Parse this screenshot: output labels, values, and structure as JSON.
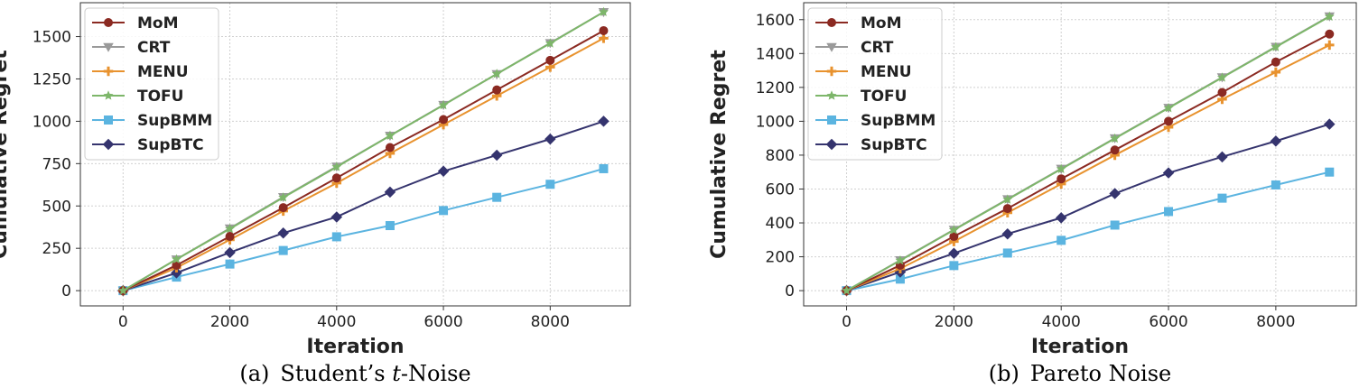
{
  "chart_data": [
    {
      "type": "line",
      "caption": {
        "prefix": "(a) Student’s ",
        "italic": "t",
        "suffix": "-Noise"
      },
      "xlabel": "Iteration",
      "ylabel": "Cumulative Regret",
      "xlim": [
        -800,
        9500
      ],
      "ylim": [
        -90,
        1700
      ],
      "xticks": [
        0,
        2000,
        4000,
        6000,
        8000
      ],
      "yticks": [
        0,
        250,
        500,
        750,
        1000,
        1250,
        1500
      ],
      "grid": true,
      "legend_position": "upper-left",
      "x": [
        0,
        1000,
        2000,
        3000,
        4000,
        5000,
        6000,
        7000,
        8000,
        9000
      ],
      "series": [
        {
          "name": "MoM",
          "color": "#8b2a22",
          "marker": "circle",
          "values": [
            0,
            150,
            320,
            490,
            665,
            845,
            1010,
            1185,
            1360,
            1535
          ]
        },
        {
          "name": "CRT",
          "color": "#9a9a9a",
          "marker": "triangle-down",
          "values": [
            0,
            185,
            368,
            553,
            733,
            915,
            1097,
            1279,
            1462,
            1645
          ]
        },
        {
          "name": "MENU",
          "color": "#e8922e",
          "marker": "plus",
          "values": [
            0,
            135,
            300,
            470,
            635,
            810,
            980,
            1150,
            1320,
            1490
          ]
        },
        {
          "name": "TOFU",
          "color": "#7db66a",
          "marker": "star",
          "values": [
            0,
            185,
            365,
            550,
            730,
            915,
            1095,
            1280,
            1460,
            1645
          ]
        },
        {
          "name": "SupBMM",
          "color": "#5bb4e0",
          "marker": "square",
          "values": [
            0,
            80,
            157,
            237,
            318,
            384,
            473,
            551,
            628,
            720
          ]
        },
        {
          "name": "SupBTC",
          "color": "#35346e",
          "marker": "diamond",
          "values": [
            0,
            105,
            225,
            340,
            435,
            582,
            705,
            800,
            895,
            1000
          ]
        }
      ]
    },
    {
      "type": "line",
      "caption": {
        "prefix": "(b) Pareto Noise",
        "italic": "",
        "suffix": ""
      },
      "xlabel": "Iteration",
      "ylabel": "Cumulative Regret",
      "xlim": [
        -800,
        9500
      ],
      "ylim": [
        -90,
        1700
      ],
      "xticks": [
        0,
        2000,
        4000,
        6000,
        8000
      ],
      "yticks": [
        0,
        200,
        400,
        600,
        800,
        1000,
        1200,
        1400,
        1600
      ],
      "grid": true,
      "legend_position": "upper-left",
      "x": [
        0,
        1000,
        2000,
        3000,
        4000,
        5000,
        6000,
        7000,
        8000,
        9000
      ],
      "series": [
        {
          "name": "MoM",
          "color": "#8b2a22",
          "marker": "circle",
          "values": [
            0,
            150,
            320,
            485,
            660,
            830,
            1000,
            1170,
            1350,
            1515
          ]
        },
        {
          "name": "CRT",
          "color": "#9a9a9a",
          "marker": "triangle-down",
          "values": [
            0,
            180,
            360,
            540,
            720,
            900,
            1080,
            1260,
            1440,
            1620
          ]
        },
        {
          "name": "MENU",
          "color": "#e8922e",
          "marker": "plus",
          "values": [
            0,
            130,
            290,
            460,
            630,
            800,
            965,
            1130,
            1290,
            1450
          ]
        },
        {
          "name": "TOFU",
          "color": "#7db66a",
          "marker": "star",
          "values": [
            0,
            178,
            358,
            538,
            718,
            898,
            1078,
            1258,
            1438,
            1618
          ]
        },
        {
          "name": "SupBMM",
          "color": "#5bb4e0",
          "marker": "square",
          "values": [
            0,
            68,
            148,
            222,
            297,
            387,
            467,
            546,
            624,
            700
          ]
        },
        {
          "name": "SupBTC",
          "color": "#35346e",
          "marker": "diamond",
          "values": [
            0,
            110,
            220,
            335,
            430,
            573,
            695,
            790,
            883,
            983
          ]
        }
      ]
    }
  ]
}
